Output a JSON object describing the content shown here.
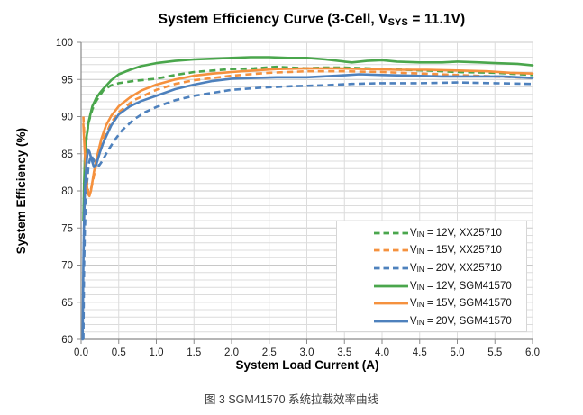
{
  "figure": {
    "title": {
      "pre": "System Efficiency Curve (3-Cell, V",
      "sub": "SYS",
      "post": " = 11.1V)"
    },
    "plot": {
      "l": 90,
      "t": 47,
      "r": 591,
      "b": 377
    },
    "x_axis": {
      "label": "System Load Current (A)",
      "ticks": [
        "0.0",
        "0.5",
        "1.0",
        "1.5",
        "2.0",
        "2.5",
        "3.0",
        "3.5",
        "4.0",
        "4.5",
        "5.0",
        "5.5",
        "6.0"
      ]
    },
    "y_axis": {
      "label": "System Efficiency (%)",
      "ticks": [
        "60",
        "65",
        "70",
        "75",
        "80",
        "85",
        "90",
        "95",
        "100"
      ],
      "minor_step": 1,
      "major_step": 5
    },
    "legend": [
      {
        "pre": "V",
        "sub": "IN",
        "post": " = 12V, XX25710",
        "color": "#4aa64c",
        "dashed": true
      },
      {
        "pre": "V",
        "sub": "IN",
        "post": " = 15V, XX25710",
        "color": "#f5913e",
        "dashed": true
      },
      {
        "pre": "V",
        "sub": "IN",
        "post": " = 20V, XX25710",
        "color": "#4e81bd",
        "dashed": true
      },
      {
        "pre": "V",
        "sub": "IN",
        "post": " = 12V, SGM41570",
        "color": "#4aa64c",
        "dashed": false
      },
      {
        "pre": "V",
        "sub": "IN",
        "post": " = 15V, SGM41570",
        "color": "#f5913e",
        "dashed": false
      },
      {
        "pre": "V",
        "sub": "IN",
        "post": " = 20V, SGM41570",
        "color": "#4e81bd",
        "dashed": false
      }
    ],
    "caption": "图 3 SGM41570 系统拉载效率曲线",
    "colors": {
      "grid": "#dcdcdc",
      "grid_major": "#c8c8c8",
      "axis": "#8a8a8a",
      "tick_text": "#1f1f1f",
      "green": "#4aa64c",
      "orange": "#f5913e",
      "blue": "#4e81bd"
    }
  },
  "chart_data": {
    "type": "line",
    "title": "System Efficiency Curve (3-Cell, VSYS = 11.1V)",
    "xlabel": "System Load Current (A)",
    "ylabel": "System Efficiency (%)",
    "xlim": [
      0,
      6
    ],
    "ylim": [
      60,
      100
    ],
    "x_tick_step": 0.5,
    "y_tick_step_minor": 1,
    "y_tick_step_major": 5,
    "grid": true,
    "legend_position": "inside-right",
    "series": [
      {
        "name": "VIN = 12V, XX25710",
        "style": "dashed",
        "color": "#4aa64c",
        "points": [
          [
            0.04,
            78
          ],
          [
            0.045,
            82
          ],
          [
            0.05,
            84
          ],
          [
            0.07,
            86.8
          ],
          [
            0.1,
            89.2
          ],
          [
            0.15,
            91.0
          ],
          [
            0.2,
            92.1
          ],
          [
            0.3,
            93.6
          ],
          [
            0.4,
            94.2
          ],
          [
            0.5,
            94.5
          ],
          [
            0.7,
            94.8
          ],
          [
            1.0,
            95.1
          ],
          [
            1.25,
            95.6
          ],
          [
            1.5,
            96.0
          ],
          [
            1.75,
            96.2
          ],
          [
            2.0,
            96.4
          ],
          [
            2.3,
            96.5
          ],
          [
            2.6,
            96.7
          ],
          [
            2.8,
            96.6
          ],
          [
            3.0,
            96.5
          ],
          [
            3.2,
            96.6
          ],
          [
            3.5,
            96.6
          ],
          [
            3.8,
            96.5
          ],
          [
            4.0,
            96.4
          ],
          [
            4.3,
            96.3
          ],
          [
            4.6,
            96.2
          ],
          [
            5.0,
            96.0
          ],
          [
            5.5,
            95.9
          ],
          [
            6.0,
            95.6
          ]
        ]
      },
      {
        "name": "VIN = 15V, XX25710",
        "style": "dashed",
        "color": "#f5913e",
        "points": [
          [
            0.03,
            90
          ],
          [
            0.05,
            86
          ],
          [
            0.08,
            81
          ],
          [
            0.1,
            79.6
          ],
          [
            0.12,
            79.8
          ],
          [
            0.15,
            81
          ],
          [
            0.2,
            83.5
          ],
          [
            0.25,
            85.5
          ],
          [
            0.3,
            87
          ],
          [
            0.4,
            89.2
          ],
          [
            0.5,
            90.6
          ],
          [
            0.7,
            92.2
          ],
          [
            1.0,
            93.6
          ],
          [
            1.25,
            94.4
          ],
          [
            1.5,
            94.9
          ],
          [
            1.75,
            95.2
          ],
          [
            2.0,
            95.5
          ],
          [
            2.5,
            95.9
          ],
          [
            3.0,
            96.1
          ],
          [
            3.5,
            96.1
          ],
          [
            4.0,
            96.0
          ],
          [
            4.5,
            95.8
          ],
          [
            5.0,
            95.6
          ],
          [
            5.5,
            95.4
          ],
          [
            6.0,
            95.2
          ]
        ]
      },
      {
        "name": "VIN = 20V, XX25710",
        "style": "dashed",
        "color": "#4e81bd",
        "points": [
          [
            0.03,
            60
          ],
          [
            0.04,
            70
          ],
          [
            0.05,
            75
          ],
          [
            0.07,
            80
          ],
          [
            0.1,
            83.5
          ],
          [
            0.13,
            84.8
          ],
          [
            0.16,
            84.3
          ],
          [
            0.2,
            83.6
          ],
          [
            0.24,
            83.4
          ],
          [
            0.28,
            84
          ],
          [
            0.35,
            85.3
          ],
          [
            0.45,
            86.9
          ],
          [
            0.55,
            88.2
          ],
          [
            0.7,
            89.6
          ],
          [
            0.85,
            90.6
          ],
          [
            1.0,
            91.3
          ],
          [
            1.25,
            92.2
          ],
          [
            1.5,
            92.8
          ],
          [
            1.75,
            93.2
          ],
          [
            2.0,
            93.6
          ],
          [
            2.4,
            93.9
          ],
          [
            2.8,
            94.1
          ],
          [
            3.2,
            94.2
          ],
          [
            3.6,
            94.4
          ],
          [
            4.0,
            94.5
          ],
          [
            4.5,
            94.5
          ],
          [
            5.0,
            94.6
          ],
          [
            5.5,
            94.5
          ],
          [
            6.0,
            94.4
          ]
        ]
      },
      {
        "name": "VIN = 12V, SGM41570",
        "style": "solid",
        "color": "#4aa64c",
        "points": [
          [
            0.03,
            76
          ],
          [
            0.04,
            81
          ],
          [
            0.05,
            84.5
          ],
          [
            0.07,
            87
          ],
          [
            0.1,
            89.3
          ],
          [
            0.15,
            91.4
          ],
          [
            0.2,
            92.5
          ],
          [
            0.25,
            93.2
          ],
          [
            0.3,
            93.8
          ],
          [
            0.4,
            94.9
          ],
          [
            0.5,
            95.7
          ],
          [
            0.65,
            96.3
          ],
          [
            0.8,
            96.8
          ],
          [
            1.0,
            97.2
          ],
          [
            1.25,
            97.5
          ],
          [
            1.5,
            97.7
          ],
          [
            1.75,
            97.8
          ],
          [
            2.0,
            97.9
          ],
          [
            2.25,
            98.0
          ],
          [
            2.5,
            98.0
          ],
          [
            2.75,
            97.9
          ],
          [
            3.0,
            97.9
          ],
          [
            3.25,
            97.7
          ],
          [
            3.5,
            97.4
          ],
          [
            3.6,
            97.3
          ],
          [
            3.8,
            97.5
          ],
          [
            4.0,
            97.6
          ],
          [
            4.2,
            97.4
          ],
          [
            4.5,
            97.3
          ],
          [
            4.8,
            97.3
          ],
          [
            5.0,
            97.4
          ],
          [
            5.3,
            97.3
          ],
          [
            5.5,
            97.2
          ],
          [
            5.8,
            97.1
          ],
          [
            6.0,
            96.9
          ]
        ]
      },
      {
        "name": "VIN = 15V, SGM41570",
        "style": "solid",
        "color": "#f5913e",
        "points": [
          [
            0.03,
            89
          ],
          [
            0.05,
            85
          ],
          [
            0.07,
            81.5
          ],
          [
            0.09,
            79.6
          ],
          [
            0.11,
            79.3
          ],
          [
            0.13,
            80
          ],
          [
            0.17,
            82.5
          ],
          [
            0.22,
            85
          ],
          [
            0.27,
            87
          ],
          [
            0.33,
            88.8
          ],
          [
            0.4,
            90.1
          ],
          [
            0.5,
            91.4
          ],
          [
            0.65,
            92.6
          ],
          [
            0.8,
            93.5
          ],
          [
            1.0,
            94.3
          ],
          [
            1.25,
            95.0
          ],
          [
            1.5,
            95.5
          ],
          [
            1.75,
            95.8
          ],
          [
            2.0,
            96.0
          ],
          [
            2.3,
            96.2
          ],
          [
            2.6,
            96.4
          ],
          [
            3.0,
            96.5
          ],
          [
            3.4,
            96.5
          ],
          [
            3.8,
            96.4
          ],
          [
            4.2,
            96.3
          ],
          [
            4.6,
            96.3
          ],
          [
            5.0,
            96.2
          ],
          [
            5.4,
            96.1
          ],
          [
            5.7,
            95.9
          ],
          [
            6.0,
            95.8
          ]
        ]
      },
      {
        "name": "VIN = 20V, SGM41570",
        "style": "solid",
        "color": "#4e81bd",
        "points": [
          [
            0.02,
            60
          ],
          [
            0.03,
            70
          ],
          [
            0.04,
            76
          ],
          [
            0.05,
            80
          ],
          [
            0.07,
            83.5
          ],
          [
            0.09,
            85.6
          ],
          [
            0.11,
            85.3
          ],
          [
            0.14,
            84.2
          ],
          [
            0.17,
            83.2
          ],
          [
            0.2,
            83.5
          ],
          [
            0.25,
            85.2
          ],
          [
            0.3,
            86.6
          ],
          [
            0.4,
            88.8
          ],
          [
            0.5,
            90.3
          ],
          [
            0.65,
            91.4
          ],
          [
            0.8,
            92.1
          ],
          [
            1.0,
            92.8
          ],
          [
            1.25,
            93.7
          ],
          [
            1.5,
            94.3
          ],
          [
            1.75,
            94.8
          ],
          [
            2.0,
            95.1
          ],
          [
            2.3,
            95.2
          ],
          [
            2.6,
            95.3
          ],
          [
            3.0,
            95.3
          ],
          [
            3.4,
            95.5
          ],
          [
            3.7,
            95.7
          ],
          [
            4.0,
            95.6
          ],
          [
            4.4,
            95.5
          ],
          [
            4.8,
            95.4
          ],
          [
            5.2,
            95.4
          ],
          [
            5.6,
            95.4
          ],
          [
            6.0,
            95.2
          ]
        ]
      }
    ]
  }
}
